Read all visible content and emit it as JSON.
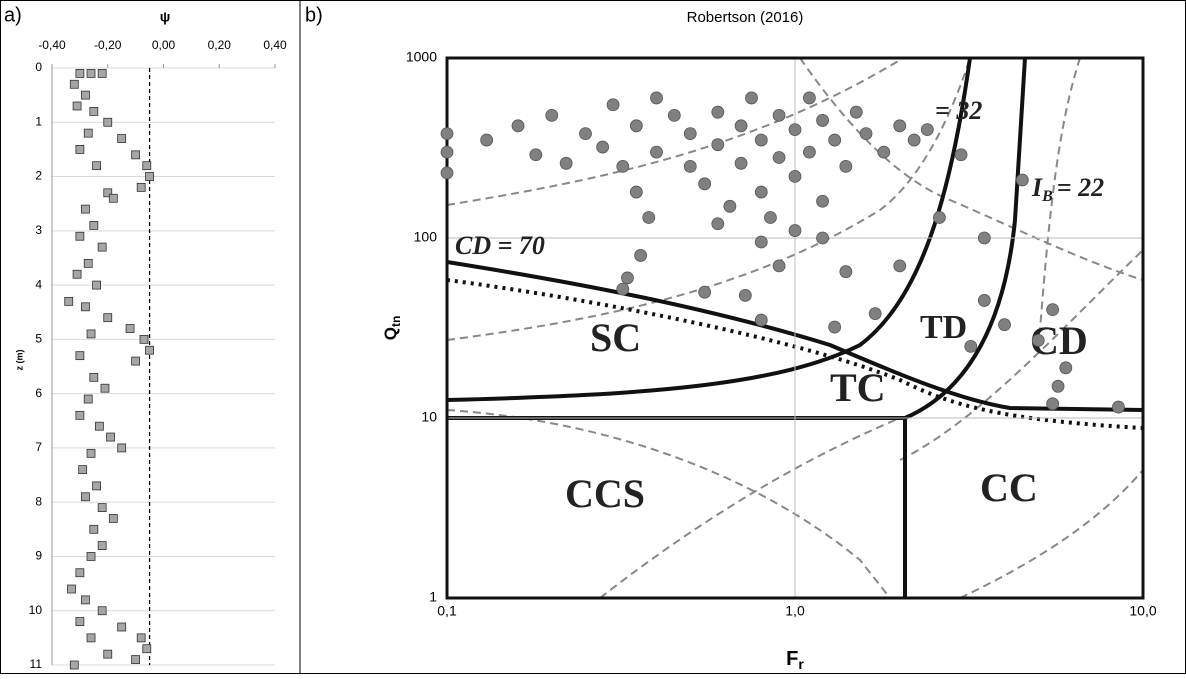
{
  "chart_data": [
    {
      "type": "scatter",
      "panel": "a)",
      "x_label": "ψ",
      "y_label": "z (m)",
      "xlim": [
        -0.4,
        0.4
      ],
      "xticks": [
        {
          "value": -0.4,
          "label": "-0,40"
        },
        {
          "value": -0.2,
          "label": "-0,20"
        },
        {
          "value": 0,
          "label": "0,00"
        },
        {
          "value": 0.2,
          "label": "0,20"
        },
        {
          "value": 0.4,
          "label": "0,40"
        }
      ],
      "ylim": [
        0,
        11
      ],
      "yticks": [
        0,
        1,
        2,
        3,
        4,
        5,
        6,
        7,
        8,
        9,
        10,
        11
      ],
      "y_inverted": true,
      "x_axis_position": "top",
      "grid": true,
      "marker": "square",
      "color": "#a6a6a6",
      "reference_line_x": -0.05,
      "x": [
        -0.3,
        -0.26,
        -0.22,
        -0.32,
        -0.28,
        -0.31,
        -0.25,
        -0.2,
        -0.15,
        -0.1,
        -0.06,
        -0.05,
        -0.08,
        -0.27,
        -0.3,
        -0.24,
        -0.2,
        -0.18,
        -0.28,
        -0.25,
        -0.3,
        -0.22,
        -0.27,
        -0.31,
        -0.24,
        -0.34,
        -0.28,
        -0.2,
        -0.12,
        -0.07,
        -0.05,
        -0.1,
        -0.26,
        -0.3,
        -0.25,
        -0.21,
        -0.27,
        -0.3,
        -0.23,
        -0.19,
        -0.15,
        -0.26,
        -0.29,
        -0.24,
        -0.28,
        -0.22,
        -0.18,
        -0.25,
        -0.22,
        -0.26,
        -0.3,
        -0.33,
        -0.28,
        -0.22,
        -0.15,
        -0.08,
        -0.06,
        -0.1,
        -0.3,
        -0.26,
        -0.2,
        -0.32
      ],
      "y": [
        0.1,
        0.1,
        0.1,
        0.3,
        0.5,
        0.7,
        0.8,
        1.0,
        1.3,
        1.6,
        1.8,
        2.0,
        2.2,
        1.2,
        1.5,
        1.8,
        2.3,
        2.4,
        2.6,
        2.9,
        3.1,
        3.3,
        3.6,
        3.8,
        4.0,
        4.3,
        4.4,
        4.6,
        4.8,
        5.0,
        5.2,
        5.4,
        4.9,
        5.3,
        5.7,
        5.9,
        6.1,
        6.4,
        6.6,
        6.8,
        7.0,
        7.1,
        7.4,
        7.7,
        7.9,
        8.1,
        8.3,
        8.5,
        8.8,
        9.0,
        9.3,
        9.6,
        9.8,
        10.0,
        10.3,
        10.5,
        10.7,
        10.9,
        10.2,
        10.5,
        10.8,
        11.0
      ]
    },
    {
      "type": "scatter",
      "panel": "b)",
      "title": "Robertson (2016)",
      "x_label": {
        "text": "F",
        "subscript": "r"
      },
      "y_label": {
        "text": "Q",
        "subscript": "tn"
      },
      "xlim": [
        0.1,
        10
      ],
      "xticks": [
        {
          "value": 0.1,
          "label": "0,1"
        },
        {
          "value": 1,
          "label": "1,0"
        },
        {
          "value": 10,
          "label": "10,0"
        }
      ],
      "ylim": [
        1,
        1000
      ],
      "yticks": [
        1,
        10,
        100,
        1000
      ],
      "xlog": true,
      "ylog": true,
      "grid": true,
      "marker": "circle",
      "color": "#808080",
      "annotations": [
        "SC",
        "TC",
        "TD",
        "CD",
        "CCS",
        "CC",
        "CD = 70",
        "= 32"
      ],
      "ib_label": {
        "symbol": "I",
        "subscript": "B",
        "text": "= 22"
      },
      "x": [
        0.1,
        0.1,
        0.1,
        0.13,
        0.16,
        0.18,
        0.2,
        0.22,
        0.25,
        0.28,
        0.3,
        0.32,
        0.35,
        0.4,
        0.4,
        0.45,
        0.5,
        0.5,
        0.55,
        0.6,
        0.6,
        0.65,
        0.7,
        0.7,
        0.75,
        0.8,
        0.8,
        0.85,
        0.9,
        0.9,
        1.0,
        1.0,
        1.1,
        1.1,
        1.2,
        1.2,
        1.3,
        1.4,
        1.5,
        1.6,
        1.8,
        2.0,
        2.2,
        2.4,
        0.35,
        0.38,
        0.36,
        0.33,
        0.32,
        0.55,
        0.72,
        0.8,
        0.9,
        1.3,
        1.4,
        1.7,
        2.0,
        2.6,
        3.0,
        3.5,
        4.5,
        4.0,
        3.5,
        3.2,
        5.0,
        5.5,
        6.0,
        5.7,
        5.5,
        8.5,
        1.0,
        1.2,
        0.8,
        0.6
      ],
      "y": [
        300,
        380,
        230,
        350,
        420,
        290,
        480,
        260,
        380,
        320,
        550,
        250,
        420,
        600,
        300,
        480,
        380,
        250,
        200,
        500,
        330,
        150,
        420,
        260,
        600,
        350,
        180,
        130,
        480,
        280,
        400,
        220,
        600,
        300,
        160,
        450,
        350,
        250,
        500,
        380,
        300,
        420,
        350,
        400,
        180,
        130,
        80,
        60,
        52,
        50,
        48,
        35,
        70,
        32,
        65,
        38,
        70,
        130,
        290,
        100,
        210,
        33,
        45,
        25,
        27,
        40,
        19,
        15,
        12,
        11.5,
        110,
        100,
        95,
        120
      ]
    }
  ]
}
